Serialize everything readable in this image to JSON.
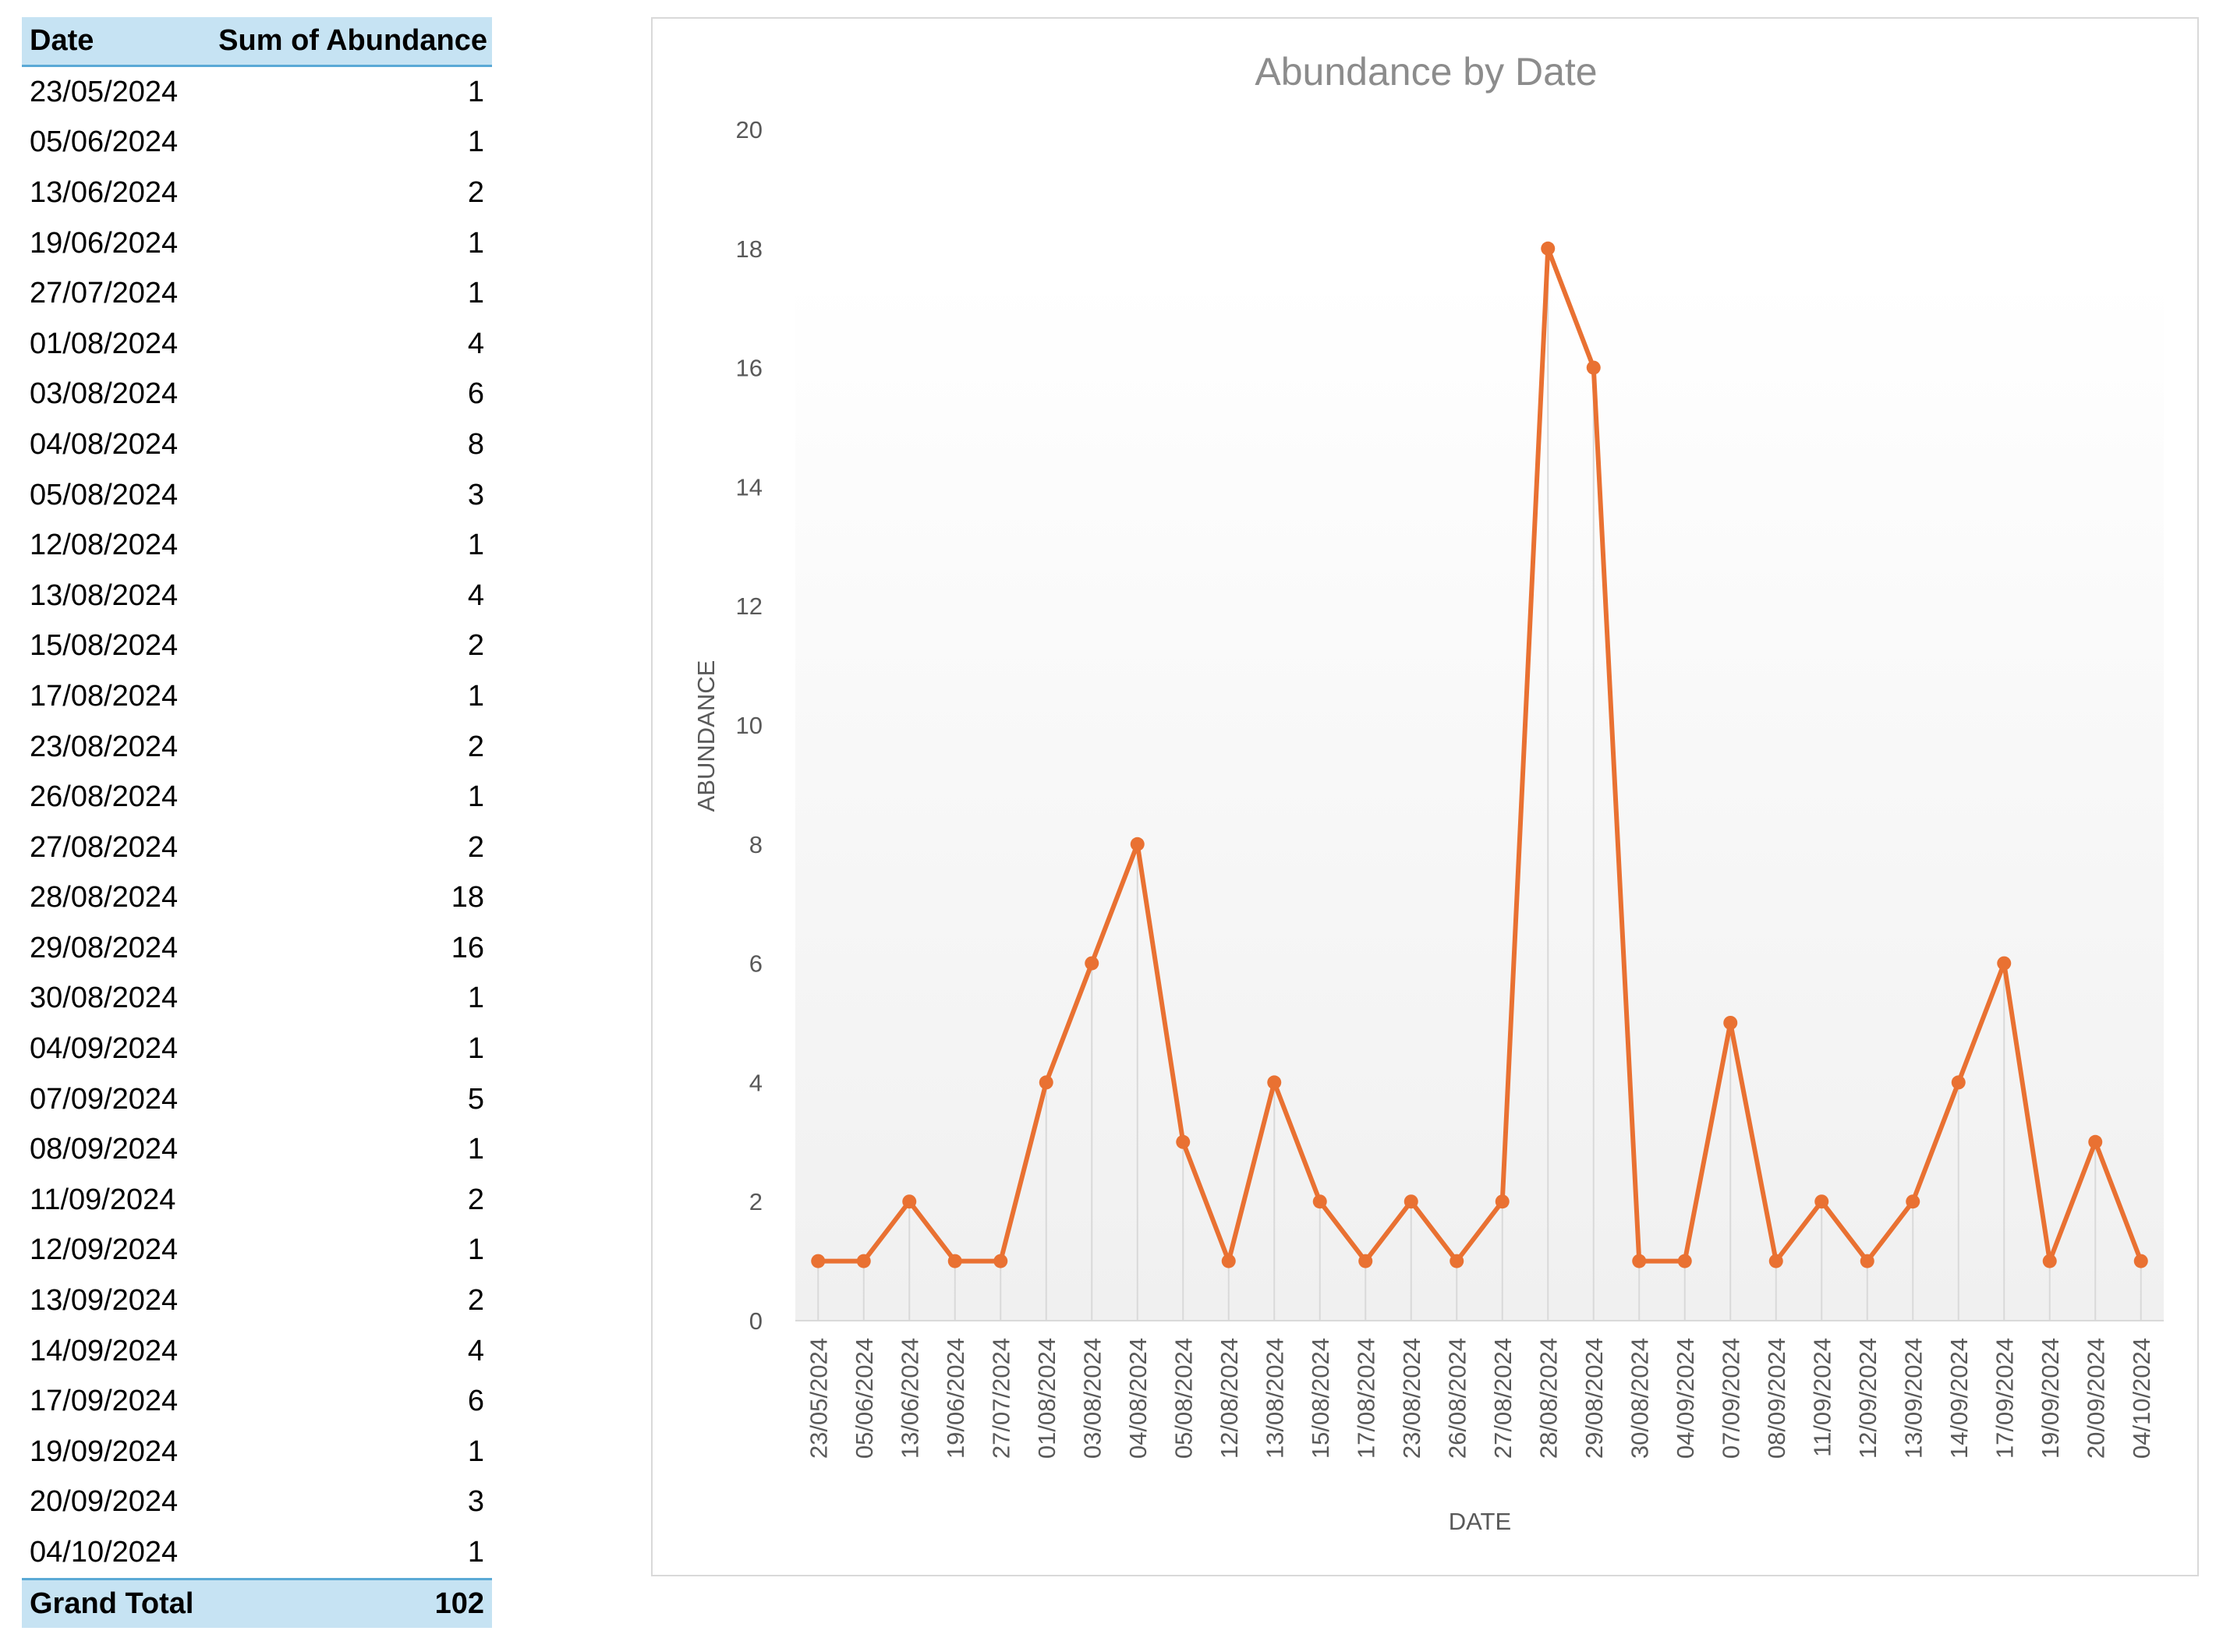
{
  "pivot": {
    "header": {
      "col1": "Date",
      "col2": "Sum of Abundance"
    },
    "rows": [
      {
        "date": "23/05/2024",
        "value": "1"
      },
      {
        "date": "05/06/2024",
        "value": "1"
      },
      {
        "date": "13/06/2024",
        "value": "2"
      },
      {
        "date": "19/06/2024",
        "value": "1"
      },
      {
        "date": "27/07/2024",
        "value": "1"
      },
      {
        "date": "01/08/2024",
        "value": "4"
      },
      {
        "date": "03/08/2024",
        "value": "6"
      },
      {
        "date": "04/08/2024",
        "value": "8"
      },
      {
        "date": "05/08/2024",
        "value": "3"
      },
      {
        "date": "12/08/2024",
        "value": "1"
      },
      {
        "date": "13/08/2024",
        "value": "4"
      },
      {
        "date": "15/08/2024",
        "value": "2"
      },
      {
        "date": "17/08/2024",
        "value": "1"
      },
      {
        "date": "23/08/2024",
        "value": "2"
      },
      {
        "date": "26/08/2024",
        "value": "1"
      },
      {
        "date": "27/08/2024",
        "value": "2"
      },
      {
        "date": "28/08/2024",
        "value": "18"
      },
      {
        "date": "29/08/2024",
        "value": "16"
      },
      {
        "date": "30/08/2024",
        "value": "1"
      },
      {
        "date": "04/09/2024",
        "value": "1"
      },
      {
        "date": "07/09/2024",
        "value": "5"
      },
      {
        "date": "08/09/2024",
        "value": "1"
      },
      {
        "date": "11/09/2024",
        "value": "2"
      },
      {
        "date": "12/09/2024",
        "value": "1"
      },
      {
        "date": "13/09/2024",
        "value": "2"
      },
      {
        "date": "14/09/2024",
        "value": "4"
      },
      {
        "date": "17/09/2024",
        "value": "6"
      },
      {
        "date": "19/09/2024",
        "value": "1"
      },
      {
        "date": "20/09/2024",
        "value": "3"
      },
      {
        "date": "04/10/2024",
        "value": "1"
      }
    ],
    "total": {
      "label": "Grand Total",
      "value": "102"
    }
  },
  "chart_data": {
    "type": "line",
    "title": "Abundance by Date",
    "xlabel": "DATE",
    "ylabel": "ABUNDANCE",
    "ylim": [
      0,
      20
    ],
    "yticks": [
      0,
      2,
      4,
      6,
      8,
      10,
      12,
      14,
      16,
      18,
      20
    ],
    "categories": [
      "23/05/2024",
      "05/06/2024",
      "13/06/2024",
      "19/06/2024",
      "27/07/2024",
      "01/08/2024",
      "03/08/2024",
      "04/08/2024",
      "05/08/2024",
      "12/08/2024",
      "13/08/2024",
      "15/08/2024",
      "17/08/2024",
      "23/08/2024",
      "26/08/2024",
      "27/08/2024",
      "28/08/2024",
      "29/08/2024",
      "30/08/2024",
      "04/09/2024",
      "07/09/2024",
      "08/09/2024",
      "11/09/2024",
      "12/09/2024",
      "13/09/2024",
      "14/09/2024",
      "17/09/2024",
      "19/09/2024",
      "20/09/2024",
      "04/10/2024"
    ],
    "series": [
      {
        "values": [
          1,
          1,
          2,
          1,
          1,
          4,
          6,
          8,
          3,
          1,
          4,
          2,
          1,
          2,
          1,
          2,
          18,
          16,
          1,
          1,
          5,
          1,
          2,
          1,
          2,
          4,
          6,
          1,
          3,
          1
        ]
      }
    ],
    "line_color": "#e97132",
    "grid": false,
    "drop_lines": true,
    "legend": "none"
  }
}
